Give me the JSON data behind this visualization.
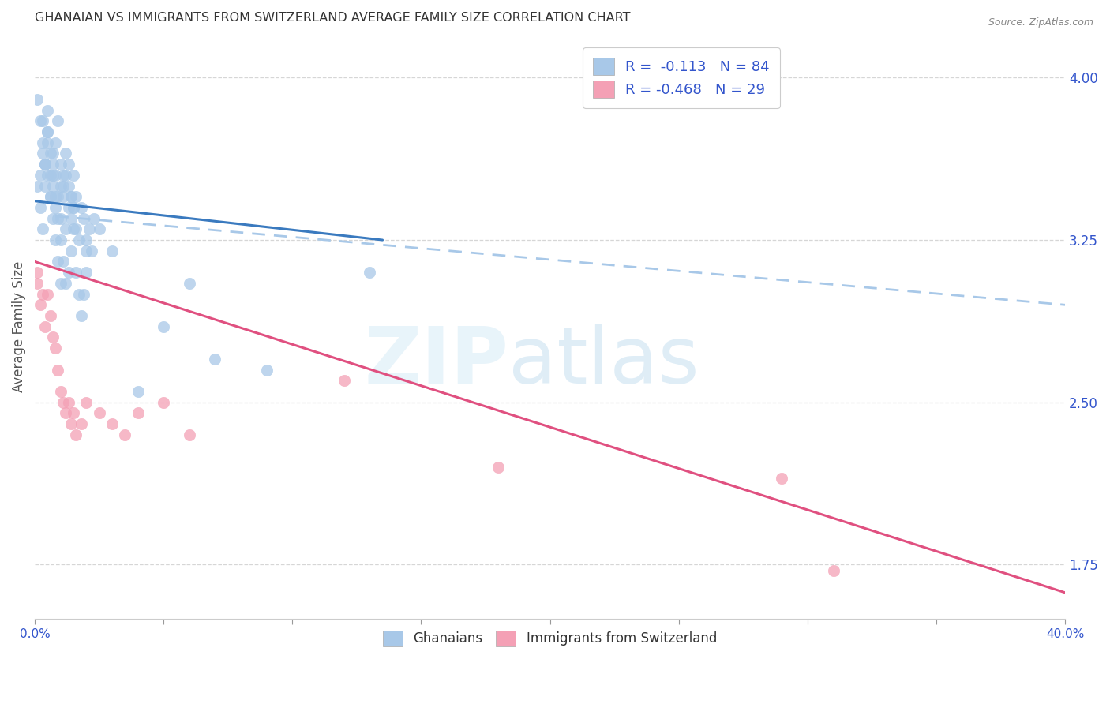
{
  "title": "GHANAIAN VS IMMIGRANTS FROM SWITZERLAND AVERAGE FAMILY SIZE CORRELATION CHART",
  "source": "Source: ZipAtlas.com",
  "ylabel": "Average Family Size",
  "yticks_right": [
    1.75,
    2.5,
    3.25,
    4.0
  ],
  "watermark_zip": "ZIP",
  "watermark_atlas": "atlas",
  "legend_r1_label": "R =  -0.113   N = 84",
  "legend_r2_label": "R = -0.468   N = 29",
  "blue_color": "#a8c8e8",
  "pink_color": "#f4a0b5",
  "blue_line_color": "#3a7abf",
  "pink_line_color": "#e05080",
  "blue_dashed_color": "#a8c8e8",
  "background_color": "#ffffff",
  "grid_color": "#cccccc",
  "legend_text_color": "#3355cc",
  "blue_scatter": {
    "x": [
      0.002,
      0.003,
      0.003,
      0.004,
      0.004,
      0.005,
      0.005,
      0.005,
      0.006,
      0.006,
      0.007,
      0.007,
      0.007,
      0.008,
      0.008,
      0.008,
      0.009,
      0.009,
      0.01,
      0.01,
      0.01,
      0.011,
      0.011,
      0.012,
      0.012,
      0.013,
      0.013,
      0.014,
      0.014,
      0.015,
      0.015,
      0.016,
      0.016,
      0.017,
      0.018,
      0.019,
      0.02,
      0.021,
      0.022,
      0.023,
      0.001,
      0.002,
      0.003,
      0.004,
      0.005,
      0.006,
      0.007,
      0.008,
      0.009,
      0.01,
      0.011,
      0.012,
      0.013,
      0.014,
      0.015,
      0.001,
      0.002,
      0.003,
      0.004,
      0.005,
      0.006,
      0.007,
      0.008,
      0.009,
      0.01,
      0.011,
      0.012,
      0.013,
      0.014,
      0.015,
      0.016,
      0.017,
      0.018,
      0.019,
      0.02,
      0.02,
      0.025,
      0.03,
      0.06,
      0.13,
      0.09,
      0.05,
      0.07,
      0.04
    ],
    "y": [
      3.55,
      3.65,
      3.8,
      3.5,
      3.6,
      3.7,
      3.75,
      3.85,
      3.45,
      3.55,
      3.6,
      3.5,
      3.65,
      3.55,
      3.4,
      3.7,
      3.8,
      3.45,
      3.35,
      3.5,
      3.6,
      3.45,
      3.55,
      3.3,
      3.65,
      3.4,
      3.5,
      3.35,
      3.45,
      3.55,
      3.4,
      3.3,
      3.45,
      3.25,
      3.4,
      3.35,
      3.25,
      3.3,
      3.2,
      3.35,
      3.5,
      3.4,
      3.3,
      3.6,
      3.55,
      3.45,
      3.35,
      3.25,
      3.15,
      3.05,
      3.5,
      3.55,
      3.6,
      3.45,
      3.4,
      3.9,
      3.8,
      3.7,
      3.6,
      3.75,
      3.65,
      3.55,
      3.45,
      3.35,
      3.25,
      3.15,
      3.05,
      3.1,
      3.2,
      3.3,
      3.1,
      3.0,
      2.9,
      3.0,
      3.1,
      3.2,
      3.3,
      3.2,
      3.05,
      3.1,
      2.65,
      2.85,
      2.7,
      2.55
    ]
  },
  "pink_scatter": {
    "x": [
      0.001,
      0.001,
      0.002,
      0.003,
      0.004,
      0.005,
      0.006,
      0.007,
      0.008,
      0.009,
      0.01,
      0.011,
      0.012,
      0.013,
      0.014,
      0.015,
      0.016,
      0.018,
      0.02,
      0.025,
      0.03,
      0.035,
      0.04,
      0.05,
      0.06,
      0.12,
      0.18,
      0.29,
      0.31
    ],
    "y": [
      3.1,
      3.05,
      2.95,
      3.0,
      2.85,
      3.0,
      2.9,
      2.8,
      2.75,
      2.65,
      2.55,
      2.5,
      2.45,
      2.5,
      2.4,
      2.45,
      2.35,
      2.4,
      2.5,
      2.45,
      2.4,
      2.35,
      2.45,
      2.5,
      2.35,
      2.6,
      2.2,
      2.15,
      1.72
    ]
  },
  "blue_trendline": {
    "x": [
      0.0,
      0.135
    ],
    "y": [
      3.43,
      3.25
    ]
  },
  "blue_dashed_line": {
    "x": [
      0.008,
      0.4
    ],
    "y": [
      3.36,
      2.95
    ]
  },
  "pink_trendline": {
    "x": [
      0.0,
      0.4
    ],
    "y": [
      3.15,
      1.62
    ]
  },
  "xlim": [
    0.0,
    0.4
  ],
  "ylim": [
    1.5,
    4.2
  ],
  "bottom_legend_labels": [
    "Ghanaians",
    "Immigrants from Switzerland"
  ]
}
